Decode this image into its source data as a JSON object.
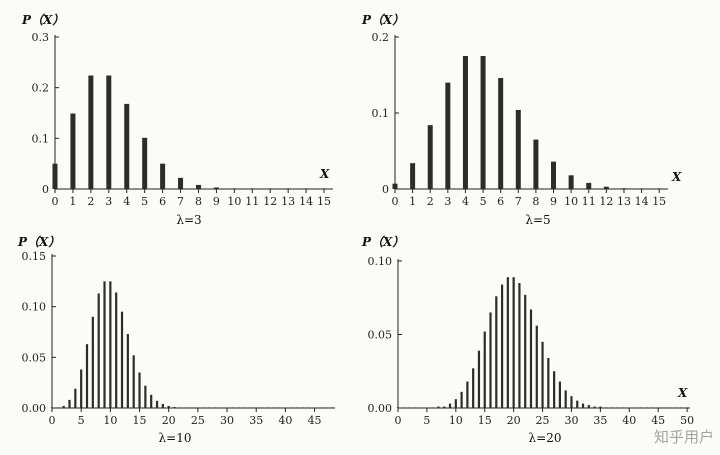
{
  "watermark": "知乎用户",
  "chart_data": [
    {
      "type": "bar",
      "title": "λ=3",
      "ylabel": "P（X）",
      "xlabel": "X",
      "ylim": [
        0,
        0.3
      ],
      "yticks": [
        "0",
        "0.1",
        "0.2",
        "0.3"
      ],
      "xticks": [
        0,
        1,
        2,
        3,
        4,
        5,
        6,
        7,
        8,
        9,
        10,
        11,
        12,
        13,
        14,
        15
      ],
      "x": [
        0,
        1,
        2,
        3,
        4,
        5,
        6,
        7,
        8,
        9,
        10,
        11,
        12,
        13,
        14,
        15
      ],
      "values": [
        0.05,
        0.149,
        0.224,
        0.224,
        0.168,
        0.101,
        0.05,
        0.022,
        0.008,
        0.003,
        0.001,
        0.0,
        0.0,
        0.0,
        0.0,
        0.0
      ]
    },
    {
      "type": "bar",
      "title": "λ=5",
      "ylabel": "P（X）",
      "xlabel": "X",
      "ylim": [
        0,
        0.2
      ],
      "yticks": [
        "0",
        "0.1",
        "0.2"
      ],
      "xticks": [
        0,
        1,
        2,
        3,
        4,
        5,
        6,
        7,
        8,
        9,
        10,
        11,
        12,
        13,
        14,
        15
      ],
      "x": [
        0,
        1,
        2,
        3,
        4,
        5,
        6,
        7,
        8,
        9,
        10,
        11,
        12,
        13,
        14,
        15
      ],
      "values": [
        0.007,
        0.034,
        0.084,
        0.14,
        0.175,
        0.175,
        0.146,
        0.104,
        0.065,
        0.036,
        0.018,
        0.008,
        0.003,
        0.001,
        0.0,
        0.0
      ]
    },
    {
      "type": "bar",
      "title": "λ=10",
      "ylabel": "P（X）",
      "xlabel": "",
      "ylim": [
        0,
        0.15
      ],
      "yticks": [
        "0.00",
        "0.05",
        "0.10",
        "0.15"
      ],
      "xticks": [
        0,
        5,
        10,
        15,
        20,
        25,
        30,
        35,
        40,
        45
      ],
      "x": [
        0,
        1,
        2,
        3,
        4,
        5,
        6,
        7,
        8,
        9,
        10,
        11,
        12,
        13,
        14,
        15,
        16,
        17,
        18,
        19,
        20,
        21,
        22,
        23,
        24,
        25,
        26,
        27,
        28,
        29,
        30,
        31,
        32,
        33,
        34,
        35,
        36,
        37,
        38,
        39,
        40,
        41,
        42,
        43,
        44,
        45,
        46,
        47,
        48
      ],
      "values": [
        0.0,
        0.0,
        0.002,
        0.008,
        0.019,
        0.038,
        0.063,
        0.09,
        0.113,
        0.125,
        0.125,
        0.114,
        0.095,
        0.073,
        0.052,
        0.035,
        0.022,
        0.013,
        0.007,
        0.004,
        0.002,
        0.001,
        0.0,
        0.0,
        0.0,
        0.0,
        0.0,
        0.0,
        0.0,
        0.0,
        0.0,
        0.0,
        0.0,
        0.0,
        0.0,
        0.0,
        0.0,
        0.0,
        0.0,
        0.0,
        0.0,
        0.0,
        0.0,
        0.0,
        0.0,
        0.0,
        0.0,
        0.0,
        0.0
      ]
    },
    {
      "type": "bar",
      "title": "λ=20",
      "ylabel": "P（X）",
      "xlabel": "X",
      "ylim": [
        0,
        0.1
      ],
      "yticks": [
        "0.00",
        "0.05",
        "0.10"
      ],
      "xticks": [
        0,
        5,
        10,
        15,
        20,
        25,
        30,
        35,
        40,
        45,
        50
      ],
      "x": [
        0,
        1,
        2,
        3,
        4,
        5,
        6,
        7,
        8,
        9,
        10,
        11,
        12,
        13,
        14,
        15,
        16,
        17,
        18,
        19,
        20,
        21,
        22,
        23,
        24,
        25,
        26,
        27,
        28,
        29,
        30,
        31,
        32,
        33,
        34,
        35,
        36,
        37,
        38,
        39,
        40,
        41,
        42,
        43,
        44,
        45,
        46,
        47,
        48,
        49,
        50
      ],
      "values": [
        0.0,
        0.0,
        0.0,
        0.0,
        0.0,
        0.0,
        0.0,
        0.001,
        0.001,
        0.003,
        0.006,
        0.011,
        0.018,
        0.027,
        0.039,
        0.052,
        0.065,
        0.076,
        0.084,
        0.089,
        0.089,
        0.085,
        0.077,
        0.067,
        0.056,
        0.045,
        0.034,
        0.025,
        0.018,
        0.012,
        0.008,
        0.005,
        0.003,
        0.002,
        0.001,
        0.001,
        0.0,
        0.0,
        0.0,
        0.0,
        0.0,
        0.0,
        0.0,
        0.0,
        0.0,
        0.0,
        0.0,
        0.0,
        0.0,
        0.0,
        0.0
      ]
    }
  ]
}
